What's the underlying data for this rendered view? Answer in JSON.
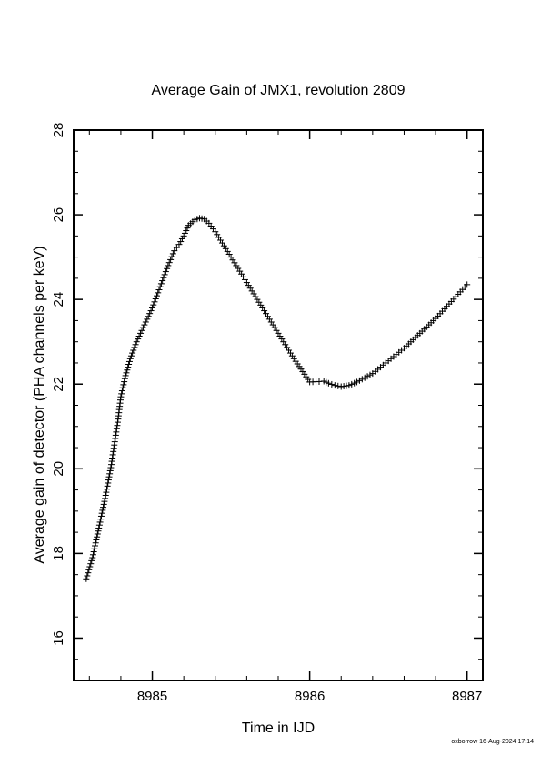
{
  "chart_data": {
    "type": "scatter",
    "title": "Average Gain of JMX1, revolution 2809",
    "xlabel": "Time in IJD",
    "ylabel": "Average gain of detector (PHA channels per keV)",
    "xlim": [
      8984.5,
      8987.1
    ],
    "ylim": [
      15,
      28
    ],
    "xticks": [
      8985,
      8986,
      8987
    ],
    "xtick_labels": [
      "8985",
      "8986",
      "8987"
    ],
    "yticks": [
      16,
      18,
      20,
      22,
      24,
      26,
      28
    ],
    "ytick_labels": [
      "16",
      "18",
      "20",
      "22",
      "24",
      "26",
      "28"
    ],
    "x_minor_step": 0.2,
    "y_minor_step": 0.5,
    "grid": false,
    "marker": "plus",
    "series": [
      {
        "x": [
          8984.58,
          8984.62,
          8984.66,
          8984.7,
          8984.74,
          8984.78,
          8984.8,
          8984.83,
          8984.86,
          8984.9,
          8984.95,
          8985.0,
          8985.05,
          8985.1,
          8985.14,
          8985.17,
          8985.2,
          8985.23,
          8985.27,
          8985.3,
          8985.33,
          8985.36,
          8985.4,
          8985.5,
          8985.6,
          8985.7,
          8985.8,
          8985.9,
          8986.0,
          8986.06,
          8986.09,
          8986.12,
          8986.16,
          8986.2,
          8986.25,
          8986.3,
          8986.4,
          8986.5,
          8986.6,
          8986.7,
          8986.8,
          8986.9,
          8987.0
        ],
        "y": [
          17.4,
          17.9,
          18.6,
          19.3,
          20.1,
          21.1,
          21.7,
          22.2,
          22.6,
          23.0,
          23.4,
          23.8,
          24.3,
          24.8,
          25.15,
          25.3,
          25.5,
          25.75,
          25.88,
          25.92,
          25.9,
          25.8,
          25.6,
          25.0,
          24.4,
          23.8,
          23.2,
          22.6,
          22.05,
          22.06,
          22.07,
          22.02,
          21.97,
          21.94,
          21.97,
          22.05,
          22.25,
          22.55,
          22.85,
          23.2,
          23.55,
          23.95,
          24.35
        ]
      }
    ]
  },
  "footer": {
    "credit": "oxborrow 16-Aug-2024 17:14"
  }
}
